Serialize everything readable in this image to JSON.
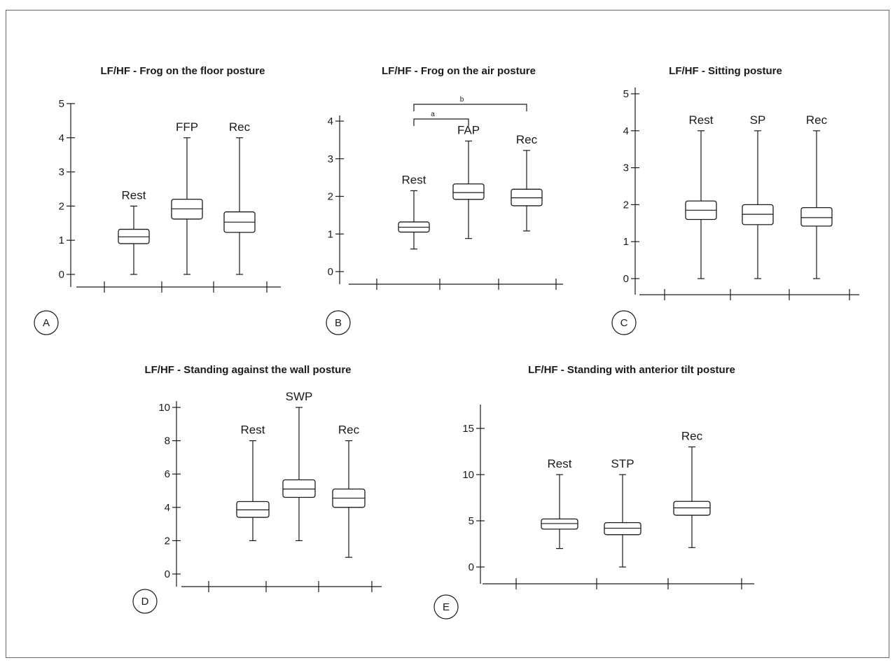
{
  "chart_data": [
    {
      "id": "A",
      "type": "box",
      "title": "LF/HF - Frog on the floor posture",
      "ylim": [
        0,
        5
      ],
      "yticks": [
        0,
        1,
        2,
        3,
        4,
        5
      ],
      "categories": [
        "Rest",
        "FFP",
        "Rec"
      ],
      "boxes": [
        {
          "label": "Rest",
          "min": 0,
          "q1": 0.9,
          "median": 1.1,
          "q3": 1.32,
          "max": 2.0
        },
        {
          "label": "FFP",
          "min": 0,
          "q1": 1.62,
          "median": 1.92,
          "q3": 2.2,
          "max": 4.0
        },
        {
          "label": "Rec",
          "min": 0,
          "q1": 1.23,
          "median": 1.53,
          "q3": 1.83,
          "max": 4.0
        }
      ],
      "significance": [],
      "panel_letter": "A"
    },
    {
      "id": "B",
      "type": "box",
      "title": "LF/HF - Frog on the air posture",
      "ylim": [
        0,
        4
      ],
      "yticks": [
        0,
        1,
        2,
        3,
        4
      ],
      "categories": [
        "Rest",
        "FAP",
        "Rec"
      ],
      "boxes": [
        {
          "label": "Rest",
          "min": 0.6,
          "q1": 1.05,
          "median": 1.18,
          "q3": 1.32,
          "max": 2.15
        },
        {
          "label": "FAP",
          "min": 0.88,
          "q1": 1.92,
          "median": 2.1,
          "q3": 2.33,
          "max": 3.47
        },
        {
          "label": "Rec",
          "min": 1.08,
          "q1": 1.75,
          "median": 1.96,
          "q3": 2.19,
          "max": 3.22
        }
      ],
      "significance": [
        {
          "label": "a",
          "from": 0,
          "to": 1,
          "level": 0
        },
        {
          "label": "b",
          "from": 0,
          "to": 2,
          "level": 1
        }
      ],
      "panel_letter": "B"
    },
    {
      "id": "C",
      "type": "box",
      "title": "LF/HF - Sitting posture",
      "ylim": [
        0,
        5
      ],
      "yticks": [
        0,
        1,
        2,
        3,
        4,
        5
      ],
      "categories": [
        "Rest",
        "SP",
        "Rec"
      ],
      "boxes": [
        {
          "label": "Rest",
          "min": 0,
          "q1": 1.6,
          "median": 1.85,
          "q3": 2.1,
          "max": 4.0
        },
        {
          "label": "SP",
          "min": 0,
          "q1": 1.46,
          "median": 1.74,
          "q3": 2.0,
          "max": 4.0
        },
        {
          "label": "Rec",
          "min": 0,
          "q1": 1.42,
          "median": 1.65,
          "q3": 1.92,
          "max": 4.0
        }
      ],
      "significance": [],
      "panel_letter": "C"
    },
    {
      "id": "D",
      "type": "box",
      "title": "LF/HF - Standing against the wall posture",
      "ylim": [
        0,
        10
      ],
      "yticks": [
        0,
        2,
        4,
        6,
        8,
        10
      ],
      "categories": [
        "Rest",
        "SWP",
        "Rec"
      ],
      "boxes": [
        {
          "label": "Rest",
          "min": 2,
          "q1": 3.4,
          "median": 3.85,
          "q3": 4.35,
          "max": 8
        },
        {
          "label": "SWP",
          "min": 2,
          "q1": 4.6,
          "median": 5.1,
          "q3": 5.65,
          "max": 10
        },
        {
          "label": "Rec",
          "min": 1,
          "q1": 4.0,
          "median": 4.55,
          "q3": 5.1,
          "max": 8
        }
      ],
      "significance": [],
      "panel_letter": "D"
    },
    {
      "id": "E",
      "type": "box",
      "title": "LF/HF - Standing with anterior tilt posture",
      "ylim": [
        0,
        15
      ],
      "yticks": [
        0,
        5,
        10,
        15
      ],
      "categories": [
        "Rest",
        "STP",
        "Rec"
      ],
      "boxes": [
        {
          "label": "Rest",
          "min": 2,
          "q1": 4.1,
          "median": 4.7,
          "q3": 5.2,
          "max": 10
        },
        {
          "label": "STP",
          "min": 0,
          "q1": 3.5,
          "median": 4.2,
          "q3": 4.8,
          "max": 10
        },
        {
          "label": "Rec",
          "min": 2.1,
          "q1": 5.6,
          "median": 6.4,
          "q3": 7.1,
          "max": 13
        }
      ],
      "significance": [],
      "panel_letter": "E"
    }
  ]
}
